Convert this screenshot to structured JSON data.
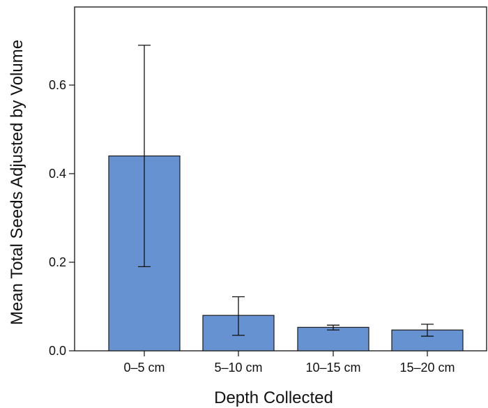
{
  "chart_data": {
    "type": "bar",
    "categories": [
      "0–5 cm",
      "5–10 cm",
      "10–15 cm",
      "15–20 cm"
    ],
    "values": [
      0.44,
      0.08,
      0.053,
      0.047
    ],
    "error_bars": [
      {
        "low": 0.19,
        "high": 0.69
      },
      {
        "low": 0.035,
        "high": 0.122
      },
      {
        "low": 0.047,
        "high": 0.058
      },
      {
        "low": 0.033,
        "high": 0.06
      }
    ],
    "title": "",
    "xlabel": "Depth Collected",
    "ylabel": "Mean Total Seeds Adjusted by Volume",
    "ylim": [
      0.0,
      0.78
    ],
    "yticks": [
      0.0,
      0.2,
      0.4,
      0.6
    ],
    "ytick_labels": [
      "0.0",
      "0.2",
      "0.4",
      "0.6"
    ],
    "grid": false,
    "legend": "none",
    "colors": {
      "bar_fill": "#6692d2",
      "bar_stroke": "#1a1a1a",
      "axis": "#111111"
    }
  }
}
